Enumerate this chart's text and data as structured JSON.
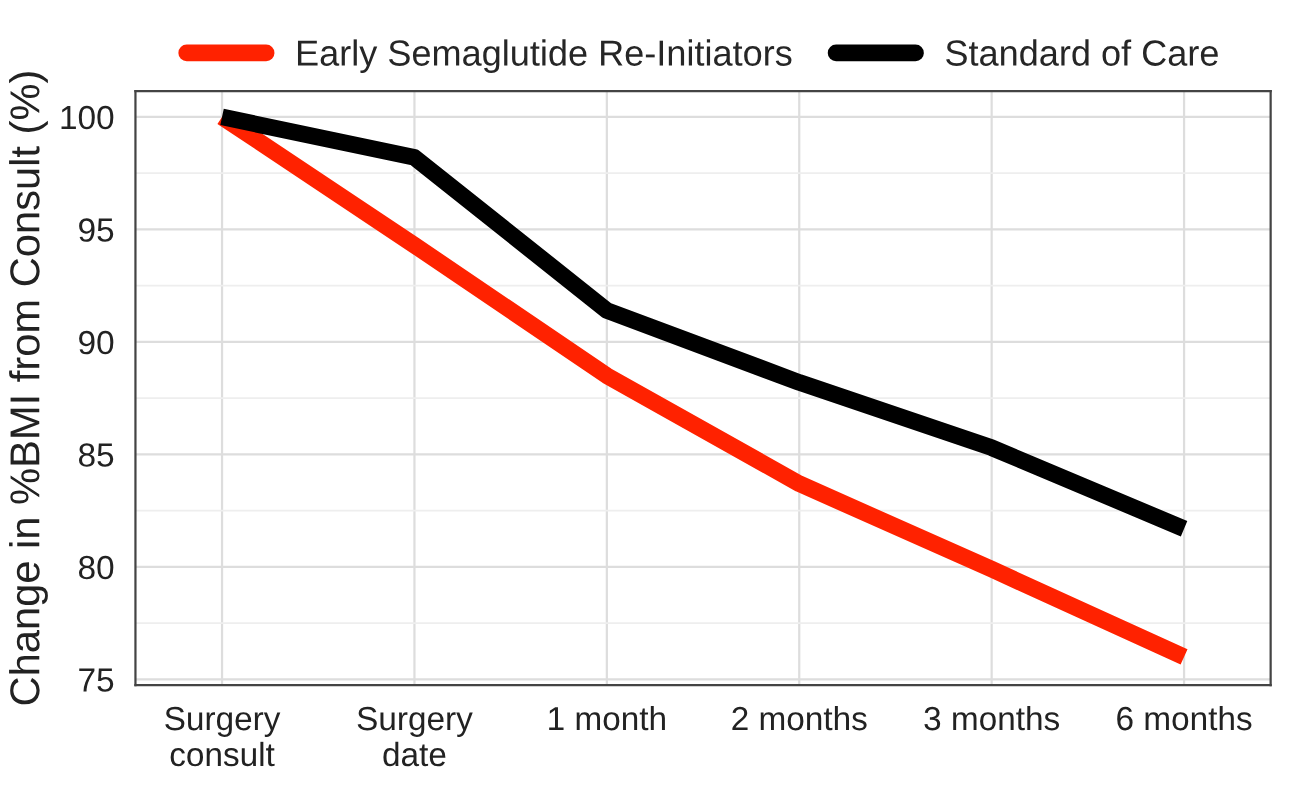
{
  "chart_data": {
    "type": "line",
    "ylabel": "Change in %BMI from Consult (%)",
    "categories": [
      "Surgery\nconsult",
      "Surgery\ndate",
      "1 month",
      "2 months",
      "3 months",
      "6 months"
    ],
    "series": [
      {
        "name": "Early Semaglutide Re-Initiators",
        "color": "#ff2200",
        "values": [
          100,
          94.3,
          88.5,
          83.7,
          79.9,
          76.0
        ]
      },
      {
        "name": "Standard of Care",
        "color": "#000000",
        "values": [
          100,
          98.2,
          91.4,
          88.2,
          85.3,
          81.7
        ]
      }
    ],
    "ylim": [
      74.75,
      101.15
    ],
    "yticks": [
      75,
      80,
      85,
      90,
      95,
      100
    ],
    "grid": true,
    "legend": "top",
    "line_style": "solid",
    "marker": "none"
  }
}
